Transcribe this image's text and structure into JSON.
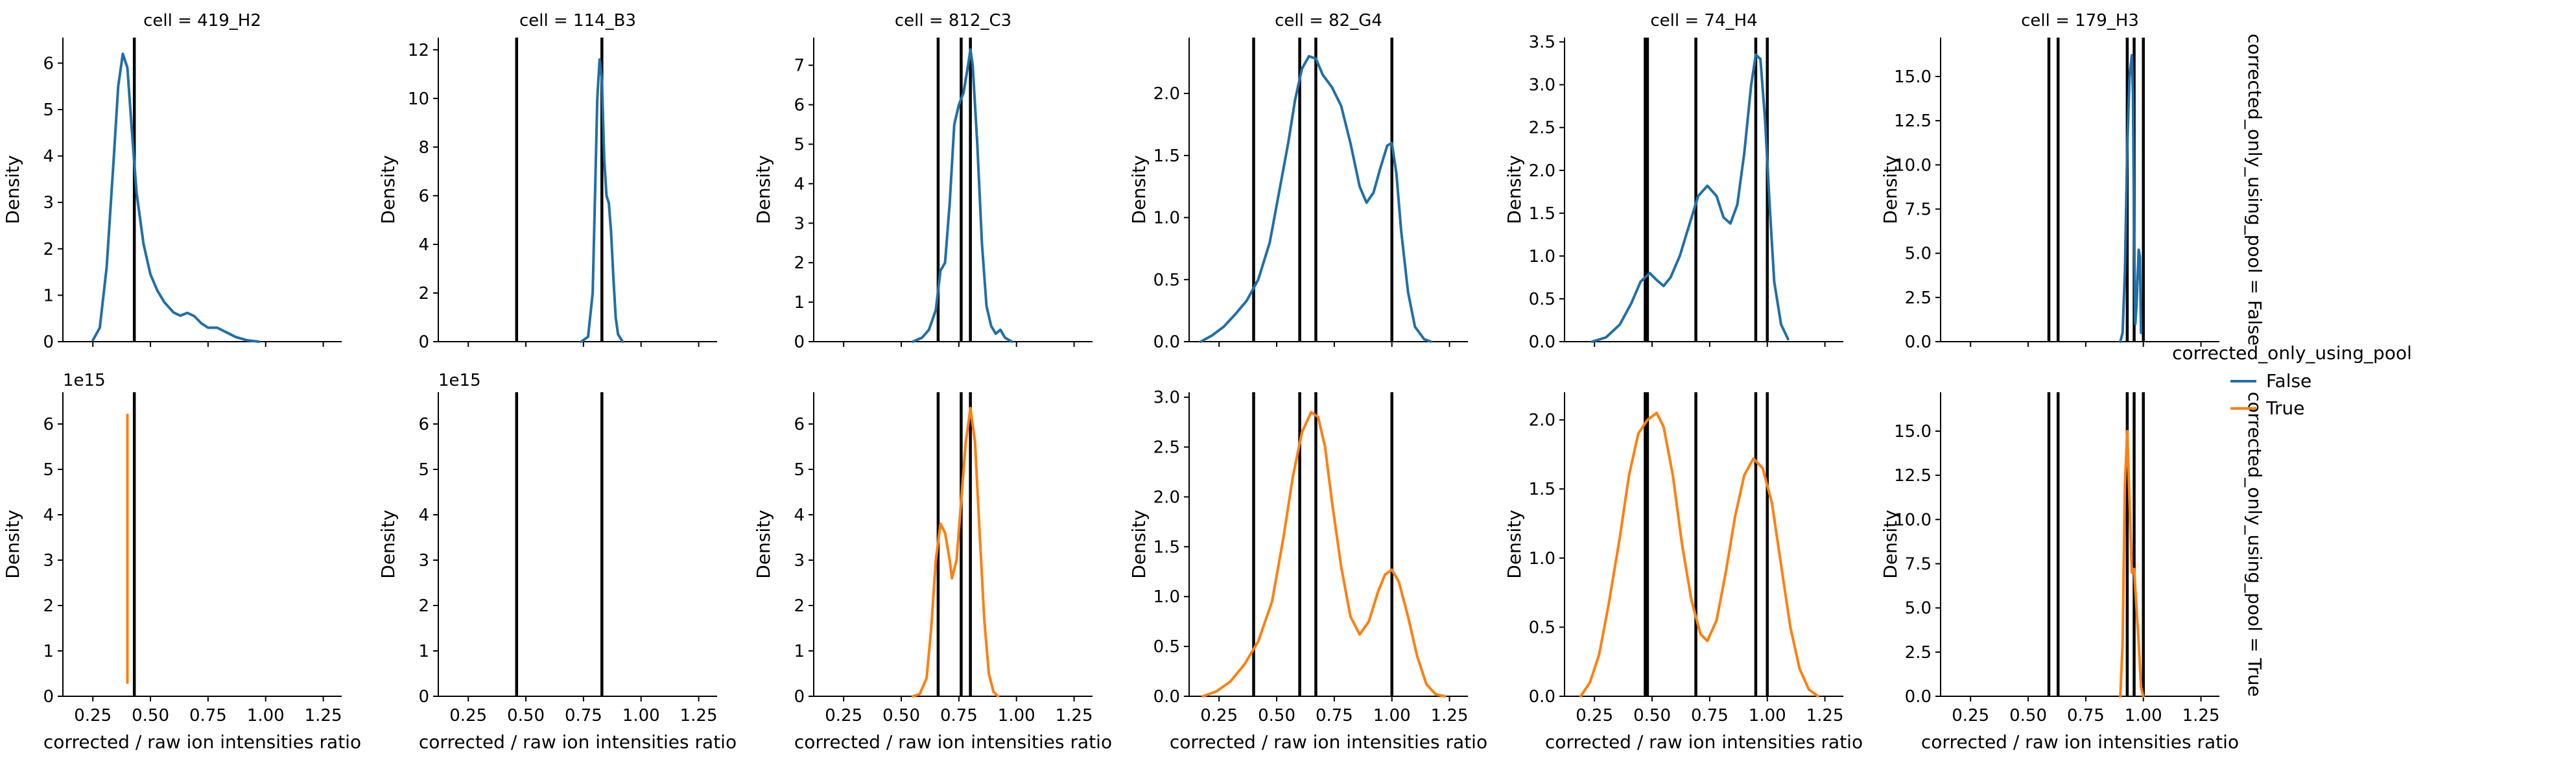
{
  "figure": {
    "legend": {
      "title": "corrected_only_using_pool",
      "entries": [
        {
          "label": "False",
          "color": "#1f6fa8"
        },
        {
          "label": "True",
          "color": "#ff7f0e"
        }
      ],
      "placement": "right"
    },
    "row_labels": [
      "corrected_only_using_pool = False",
      "corrected_only_using_pool = True"
    ],
    "xlabel": "corrected / raw ion intensities ratio",
    "ylabel": "Density",
    "xlim": [
      0.12,
      1.33
    ],
    "xticks": [
      0.25,
      0.5,
      0.75,
      1.0,
      1.25
    ],
    "xtick_labels": [
      "0.25",
      "0.50",
      "0.75",
      "1.00",
      "1.25"
    ]
  },
  "chart_data": [
    {
      "type": "line",
      "title": "cell = 419_H2",
      "row": 0,
      "col": 0,
      "series_name": "False",
      "ylim": [
        0,
        6.55
      ],
      "yticks": [
        0,
        1,
        2,
        3,
        4,
        5,
        6
      ],
      "ytick_labels": [
        "0",
        "1",
        "2",
        "3",
        "4",
        "5",
        "6"
      ],
      "offset_label": "",
      "vlines": [
        0.43
      ],
      "points": [
        [
          0.25,
          0.03
        ],
        [
          0.28,
          0.3
        ],
        [
          0.31,
          1.6
        ],
        [
          0.34,
          3.9
        ],
        [
          0.36,
          5.5
        ],
        [
          0.38,
          6.2
        ],
        [
          0.4,
          5.9
        ],
        [
          0.42,
          4.5
        ],
        [
          0.44,
          3.2
        ],
        [
          0.47,
          2.1
        ],
        [
          0.5,
          1.45
        ],
        [
          0.53,
          1.1
        ],
        [
          0.56,
          0.85
        ],
        [
          0.6,
          0.63
        ],
        [
          0.63,
          0.56
        ],
        [
          0.66,
          0.62
        ],
        [
          0.69,
          0.55
        ],
        [
          0.72,
          0.4
        ],
        [
          0.75,
          0.3
        ],
        [
          0.79,
          0.3
        ],
        [
          0.83,
          0.2
        ],
        [
          0.87,
          0.1
        ],
        [
          0.92,
          0.03
        ],
        [
          0.97,
          0.0
        ]
      ]
    },
    {
      "type": "line",
      "title": "cell = 114_B3",
      "row": 0,
      "col": 1,
      "series_name": "False",
      "ylim": [
        0,
        12.5
      ],
      "yticks": [
        0,
        2,
        4,
        6,
        8,
        10,
        12
      ],
      "ytick_labels": [
        "0",
        "2",
        "4",
        "6",
        "8",
        "10",
        "12"
      ],
      "offset_label": "",
      "vlines": [
        0.46,
        0.83
      ],
      "points": [
        [
          0.74,
          0.0
        ],
        [
          0.77,
          0.2
        ],
        [
          0.79,
          2.0
        ],
        [
          0.8,
          6.0
        ],
        [
          0.81,
          10.0
        ],
        [
          0.82,
          11.6
        ],
        [
          0.83,
          10.8
        ],
        [
          0.84,
          7.5
        ],
        [
          0.85,
          6.0
        ],
        [
          0.86,
          5.7
        ],
        [
          0.87,
          4.5
        ],
        [
          0.88,
          2.6
        ],
        [
          0.89,
          1.0
        ],
        [
          0.9,
          0.3
        ],
        [
          0.92,
          0.0
        ]
      ]
    },
    {
      "type": "line",
      "title": "cell = 812_C3",
      "row": 0,
      "col": 2,
      "series_name": "False",
      "ylim": [
        0,
        7.7
      ],
      "yticks": [
        0,
        1,
        2,
        3,
        4,
        5,
        6,
        7
      ],
      "ytick_labels": [
        "0",
        "1",
        "2",
        "3",
        "4",
        "5",
        "6",
        "7"
      ],
      "offset_label": "",
      "vlines": [
        0.66,
        0.76,
        0.8
      ],
      "points": [
        [
          0.55,
          0.0
        ],
        [
          0.59,
          0.1
        ],
        [
          0.62,
          0.3
        ],
        [
          0.65,
          0.8
        ],
        [
          0.67,
          1.8
        ],
        [
          0.69,
          2.0
        ],
        [
          0.71,
          3.5
        ],
        [
          0.73,
          5.5
        ],
        [
          0.75,
          6.0
        ],
        [
          0.77,
          6.3
        ],
        [
          0.79,
          7.0
        ],
        [
          0.8,
          7.4
        ],
        [
          0.81,
          7.0
        ],
        [
          0.83,
          5.0
        ],
        [
          0.85,
          2.5
        ],
        [
          0.87,
          0.9
        ],
        [
          0.89,
          0.4
        ],
        [
          0.91,
          0.2
        ],
        [
          0.93,
          0.3
        ],
        [
          0.95,
          0.1
        ],
        [
          0.98,
          0.0
        ]
      ]
    },
    {
      "type": "line",
      "title": "cell = 82_G4",
      "row": 0,
      "col": 3,
      "series_name": "False",
      "ylim": [
        0,
        2.45
      ],
      "yticks": [
        0,
        0.5,
        1.0,
        1.5,
        2.0
      ],
      "ytick_labels": [
        "0.0",
        "0.5",
        "1.0",
        "1.5",
        "2.0"
      ],
      "offset_label": "",
      "vlines": [
        0.4,
        0.6,
        0.67,
        1.0
      ],
      "points": [
        [
          0.17,
          0.0
        ],
        [
          0.22,
          0.05
        ],
        [
          0.27,
          0.12
        ],
        [
          0.32,
          0.22
        ],
        [
          0.37,
          0.33
        ],
        [
          0.42,
          0.5
        ],
        [
          0.47,
          0.8
        ],
        [
          0.51,
          1.2
        ],
        [
          0.55,
          1.6
        ],
        [
          0.58,
          1.95
        ],
        [
          0.61,
          2.2
        ],
        [
          0.64,
          2.3
        ],
        [
          0.67,
          2.28
        ],
        [
          0.7,
          2.15
        ],
        [
          0.74,
          2.05
        ],
        [
          0.78,
          1.9
        ],
        [
          0.82,
          1.6
        ],
        [
          0.86,
          1.25
        ],
        [
          0.89,
          1.12
        ],
        [
          0.92,
          1.2
        ],
        [
          0.95,
          1.4
        ],
        [
          0.98,
          1.58
        ],
        [
          1.0,
          1.6
        ],
        [
          1.02,
          1.35
        ],
        [
          1.04,
          0.9
        ],
        [
          1.07,
          0.4
        ],
        [
          1.1,
          0.12
        ],
        [
          1.14,
          0.02
        ],
        [
          1.17,
          0.0
        ]
      ]
    },
    {
      "type": "line",
      "title": "cell = 74_H4",
      "row": 0,
      "col": 4,
      "series_name": "False",
      "ylim": [
        0,
        3.55
      ],
      "yticks": [
        0,
        0.5,
        1.0,
        1.5,
        2.0,
        2.5,
        3.0,
        3.5
      ],
      "ytick_labels": [
        "0.0",
        "0.5",
        "1.0",
        "1.5",
        "2.0",
        "2.5",
        "3.0",
        "3.5"
      ],
      "offset_label": "",
      "vlines": [
        0.47,
        0.48,
        0.69,
        0.95,
        1.0
      ],
      "points": [
        [
          0.24,
          0.0
        ],
        [
          0.3,
          0.05
        ],
        [
          0.36,
          0.2
        ],
        [
          0.41,
          0.45
        ],
        [
          0.45,
          0.7
        ],
        [
          0.49,
          0.8
        ],
        [
          0.52,
          0.72
        ],
        [
          0.55,
          0.65
        ],
        [
          0.58,
          0.75
        ],
        [
          0.62,
          1.0
        ],
        [
          0.66,
          1.35
        ],
        [
          0.7,
          1.7
        ],
        [
          0.74,
          1.82
        ],
        [
          0.78,
          1.7
        ],
        [
          0.81,
          1.45
        ],
        [
          0.84,
          1.38
        ],
        [
          0.87,
          1.6
        ],
        [
          0.9,
          2.2
        ],
        [
          0.93,
          3.0
        ],
        [
          0.95,
          3.35
        ],
        [
          0.97,
          3.3
        ],
        [
          0.99,
          2.6
        ],
        [
          1.01,
          1.6
        ],
        [
          1.03,
          0.7
        ],
        [
          1.06,
          0.2
        ],
        [
          1.09,
          0.03
        ]
      ]
    },
    {
      "type": "line",
      "title": "cell = 179_H3",
      "row": 0,
      "col": 5,
      "series_name": "False",
      "ylim": [
        0,
        17.2
      ],
      "yticks": [
        0,
        2.5,
        5.0,
        7.5,
        10.0,
        12.5,
        15.0
      ],
      "ytick_labels": [
        "0.0",
        "2.5",
        "5.0",
        "7.5",
        "10.0",
        "12.5",
        "15.0"
      ],
      "offset_label": "",
      "vlines": [
        0.59,
        0.63,
        0.93,
        0.96,
        1.0
      ],
      "points": [
        [
          0.9,
          0.0
        ],
        [
          0.91,
          0.5
        ],
        [
          0.92,
          4.0
        ],
        [
          0.93,
          11.0
        ],
        [
          0.94,
          15.0
        ],
        [
          0.95,
          16.2
        ],
        [
          0.955,
          14.0
        ],
        [
          0.96,
          6.0
        ],
        [
          0.965,
          1.0
        ],
        [
          0.97,
          2.0
        ],
        [
          0.98,
          5.2
        ],
        [
          0.985,
          4.8
        ],
        [
          0.99,
          0.5
        ]
      ]
    },
    {
      "type": "line",
      "title": "",
      "row": 1,
      "col": 0,
      "series_name": "True",
      "ylim": [
        0,
        6.7
      ],
      "yticks": [
        0,
        1,
        2,
        3,
        4,
        5,
        6
      ],
      "ytick_labels": [
        "0",
        "1",
        "2",
        "3",
        "4",
        "5",
        "6"
      ],
      "offset_label": "1e15",
      "vlines": [
        0.43
      ],
      "points": [
        [
          0.4,
          0.3
        ],
        [
          0.4,
          6.2
        ]
      ]
    },
    {
      "type": "line",
      "title": "",
      "row": 1,
      "col": 1,
      "series_name": "True",
      "ylim": [
        0,
        6.7
      ],
      "yticks": [
        0,
        1,
        2,
        3,
        4,
        5,
        6
      ],
      "ytick_labels": [
        "0",
        "1",
        "2",
        "3",
        "4",
        "5",
        "6"
      ],
      "offset_label": "1e15",
      "vlines": [
        0.46,
        0.83
      ],
      "points": []
    },
    {
      "type": "line",
      "title": "",
      "row": 1,
      "col": 2,
      "series_name": "True",
      "ylim": [
        0,
        6.7
      ],
      "yticks": [
        0,
        1,
        2,
        3,
        4,
        5,
        6
      ],
      "ytick_labels": [
        "0",
        "1",
        "2",
        "3",
        "4",
        "5",
        "6"
      ],
      "offset_label": "",
      "vlines": [
        0.66,
        0.76,
        0.8
      ],
      "points": [
        [
          0.55,
          0.0
        ],
        [
          0.58,
          0.05
        ],
        [
          0.61,
          0.4
        ],
        [
          0.63,
          1.5
        ],
        [
          0.65,
          3.0
        ],
        [
          0.67,
          3.8
        ],
        [
          0.69,
          3.6
        ],
        [
          0.71,
          3.0
        ],
        [
          0.72,
          2.6
        ],
        [
          0.74,
          3.0
        ],
        [
          0.76,
          4.3
        ],
        [
          0.78,
          5.6
        ],
        [
          0.8,
          6.35
        ],
        [
          0.82,
          5.6
        ],
        [
          0.84,
          3.6
        ],
        [
          0.86,
          1.7
        ],
        [
          0.88,
          0.5
        ],
        [
          0.9,
          0.1
        ],
        [
          0.92,
          0.0
        ]
      ]
    },
    {
      "type": "line",
      "title": "",
      "row": 1,
      "col": 3,
      "series_name": "True",
      "ylim": [
        0,
        3.05
      ],
      "yticks": [
        0,
        0.5,
        1.0,
        1.5,
        2.0,
        2.5,
        3.0
      ],
      "ytick_labels": [
        "0.0",
        "0.5",
        "1.0",
        "1.5",
        "2.0",
        "2.5",
        "3.0"
      ],
      "offset_label": "",
      "vlines": [
        0.4,
        0.6,
        0.67,
        1.0
      ],
      "points": [
        [
          0.18,
          0.0
        ],
        [
          0.24,
          0.05
        ],
        [
          0.3,
          0.15
        ],
        [
          0.36,
          0.32
        ],
        [
          0.42,
          0.55
        ],
        [
          0.48,
          0.95
        ],
        [
          0.53,
          1.6
        ],
        [
          0.57,
          2.2
        ],
        [
          0.61,
          2.65
        ],
        [
          0.65,
          2.85
        ],
        [
          0.68,
          2.8
        ],
        [
          0.71,
          2.5
        ],
        [
          0.74,
          1.95
        ],
        [
          0.78,
          1.3
        ],
        [
          0.82,
          0.8
        ],
        [
          0.86,
          0.62
        ],
        [
          0.9,
          0.75
        ],
        [
          0.94,
          1.05
        ],
        [
          0.97,
          1.22
        ],
        [
          1.0,
          1.27
        ],
        [
          1.03,
          1.15
        ],
        [
          1.07,
          0.8
        ],
        [
          1.11,
          0.4
        ],
        [
          1.15,
          0.12
        ],
        [
          1.19,
          0.02
        ],
        [
          1.23,
          0.0
        ]
      ]
    },
    {
      "type": "line",
      "title": "",
      "row": 1,
      "col": 4,
      "series_name": "True",
      "ylim": [
        0,
        2.2
      ],
      "yticks": [
        0,
        0.5,
        1.0,
        1.5,
        2.0
      ],
      "ytick_labels": [
        "0.0",
        "0.5",
        "1.0",
        "1.5",
        "2.0"
      ],
      "offset_label": "",
      "vlines": [
        0.47,
        0.48,
        0.69,
        0.95,
        1.0
      ],
      "points": [
        [
          0.19,
          0.0
        ],
        [
          0.23,
          0.1
        ],
        [
          0.27,
          0.3
        ],
        [
          0.31,
          0.65
        ],
        [
          0.36,
          1.15
        ],
        [
          0.4,
          1.6
        ],
        [
          0.44,
          1.9
        ],
        [
          0.48,
          2.0
        ],
        [
          0.52,
          2.05
        ],
        [
          0.55,
          1.95
        ],
        [
          0.59,
          1.6
        ],
        [
          0.63,
          1.1
        ],
        [
          0.67,
          0.7
        ],
        [
          0.71,
          0.45
        ],
        [
          0.74,
          0.4
        ],
        [
          0.78,
          0.55
        ],
        [
          0.82,
          0.9
        ],
        [
          0.86,
          1.3
        ],
        [
          0.9,
          1.6
        ],
        [
          0.94,
          1.72
        ],
        [
          0.98,
          1.65
        ],
        [
          1.02,
          1.4
        ],
        [
          1.06,
          0.95
        ],
        [
          1.1,
          0.5
        ],
        [
          1.14,
          0.2
        ],
        [
          1.18,
          0.05
        ],
        [
          1.22,
          0.0
        ]
      ]
    },
    {
      "type": "line",
      "title": "",
      "row": 1,
      "col": 5,
      "series_name": "True",
      "ylim": [
        0,
        17.2
      ],
      "yticks": [
        0,
        2.5,
        5.0,
        7.5,
        10.0,
        12.5,
        15.0
      ],
      "ytick_labels": [
        "0.0",
        "2.5",
        "5.0",
        "7.5",
        "10.0",
        "12.5",
        "15.0"
      ],
      "offset_label": "",
      "vlines": [
        0.59,
        0.63,
        0.93,
        0.96,
        1.0
      ],
      "points": [
        [
          0.9,
          0.0
        ],
        [
          0.91,
          3.0
        ],
        [
          0.92,
          12.0
        ],
        [
          0.93,
          15.0
        ],
        [
          0.94,
          11.0
        ],
        [
          0.95,
          7.0
        ],
        [
          0.96,
          7.2
        ],
        [
          0.97,
          5.0
        ],
        [
          0.98,
          3.0
        ],
        [
          0.99,
          0.5
        ],
        [
          1.0,
          0.0
        ]
      ]
    }
  ]
}
